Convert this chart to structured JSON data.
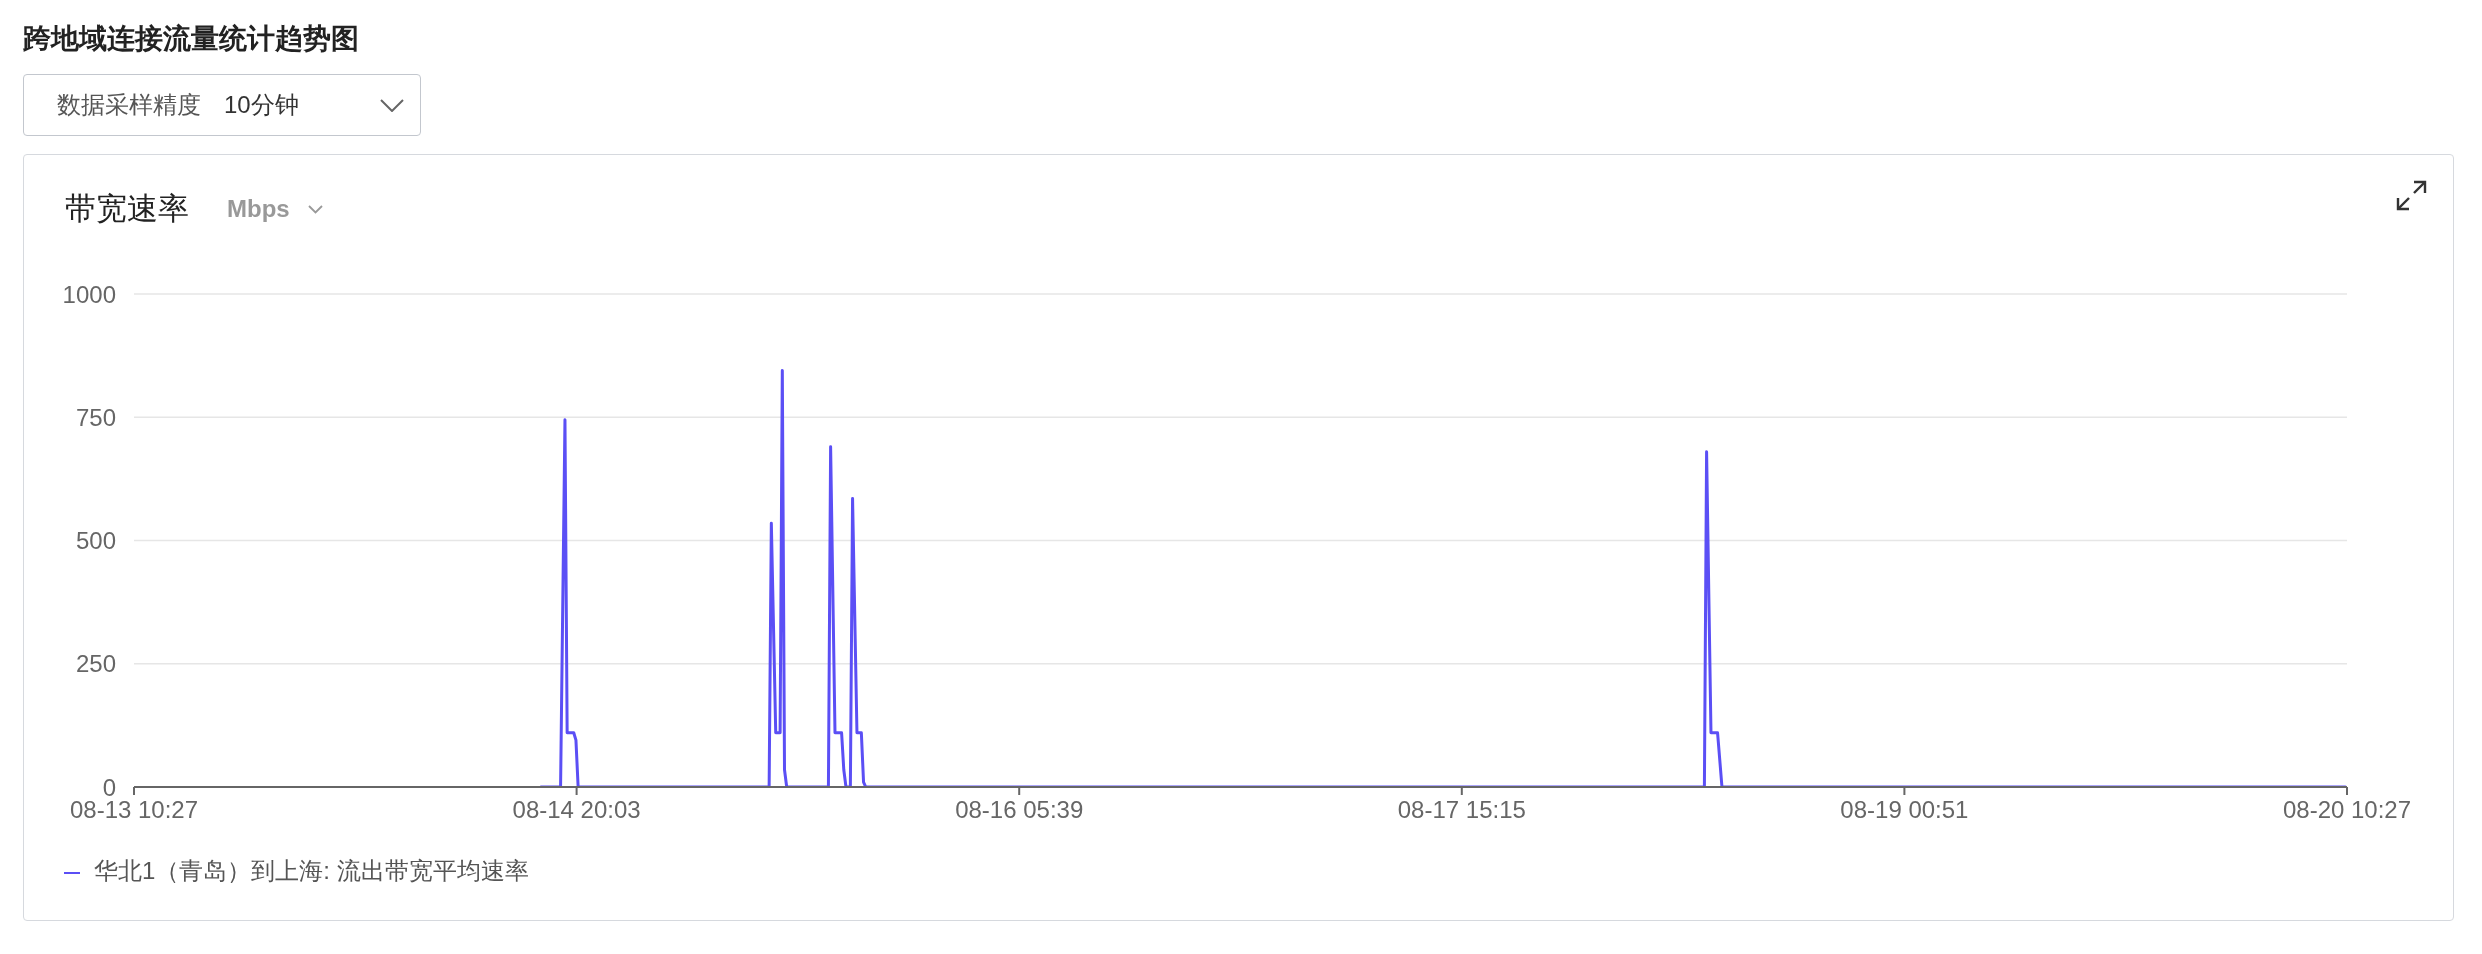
{
  "chart_data": {
    "type": "line",
    "title": "跨地域连接流量统计趋势图",
    "subtitle": "带宽速率",
    "ylabel": "Mbps",
    "annotations": [
      "数据采样精度",
      "10分钟"
    ],
    "x": [
      "--08-14T17:20",
      "--08-14T18:50",
      "--08-14T19:10",
      "--08-14T19:20",
      "--08-14T19:50",
      "--08-14T20:00",
      "--08-14T20:10",
      "--08-15T10:40",
      "--08-15T10:50",
      "--08-15T11:10",
      "--08-15T11:30",
      "--08-15T11:40",
      "--08-15T11:50",
      "--08-15T12:00",
      "--08-15T15:10",
      "--08-15T15:20",
      "--08-15T15:40",
      "--08-15T16:10",
      "--08-15T16:20",
      "--08-15T16:30",
      "--08-15T16:50",
      "--08-15T17:00",
      "--08-15T17:20",
      "--08-15T17:40",
      "--08-15T17:50",
      "--08-15T18:00",
      "--08-18T09:40",
      "--08-18T09:50",
      "--08-18T10:10",
      "--08-18T10:40",
      "--08-18T11:00",
      "--08-20T10:20"
    ],
    "series": [
      {
        "name": "华北1（青岛）到上海: 流出带宽平均速率",
        "color": "#5b4ff5",
        "values": [
          0,
          0,
          745,
          110,
          110,
          95,
          0,
          0,
          535,
          110,
          110,
          845,
          35,
          0,
          0,
          690,
          110,
          110,
          35,
          0,
          0,
          585,
          110,
          110,
          10,
          0,
          0,
          680,
          110,
          110,
          0,
          0
        ]
      }
    ],
    "xlim": [
      "--08-13T10:27",
      "--08-20T10:27"
    ],
    "xticks": [
      {
        "value": "--08-13T10:27",
        "label": "08-13 10:27"
      },
      {
        "value": "--08-14T20:03",
        "label": "08-14 20:03"
      },
      {
        "value": "--08-16T05:39",
        "label": "08-16 05:39"
      },
      {
        "value": "--08-17T15:15",
        "label": "08-17 15:15"
      },
      {
        "value": "--08-19T00:51",
        "label": "08-19 00:51"
      },
      {
        "value": "--08-20T10:27",
        "label": "08-20 10:27"
      }
    ],
    "ylim": [
      0,
      1000
    ],
    "yticks": [
      0,
      250,
      500,
      750,
      1000
    ],
    "grid": "y",
    "legend": "bottom left",
    "marker": "none",
    "line_style": "solid"
  }
}
